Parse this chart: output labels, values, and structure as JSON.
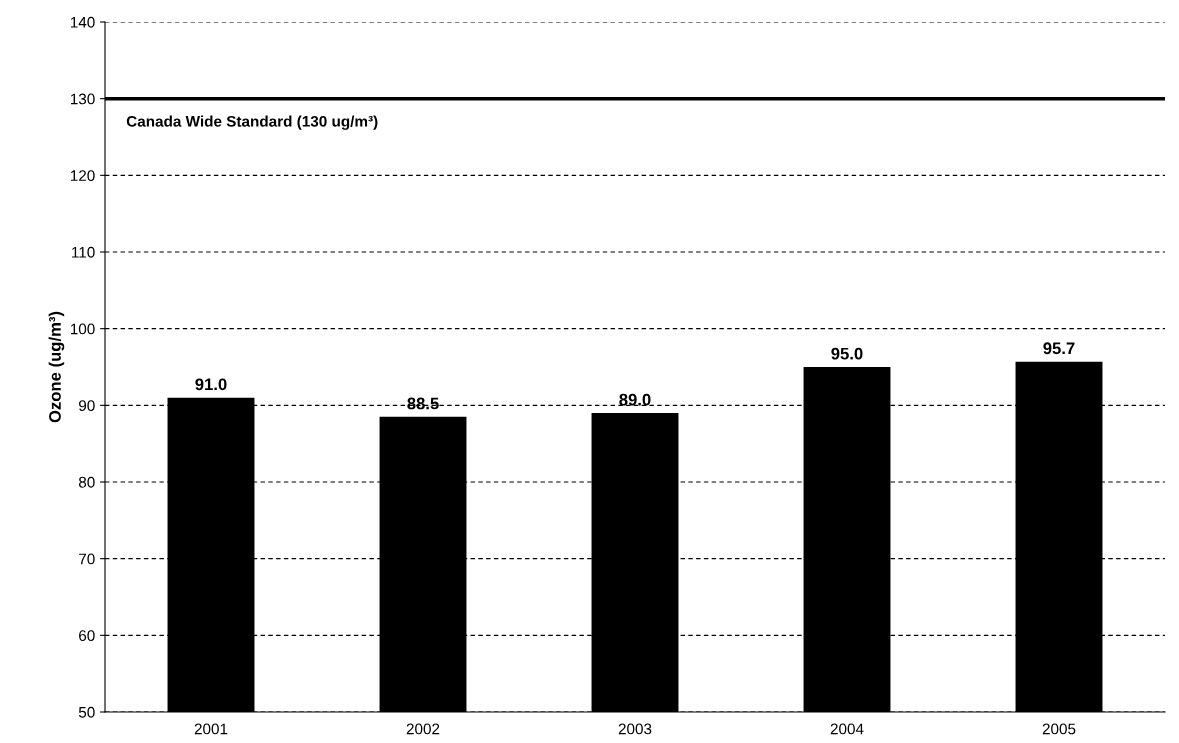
{
  "chart_data": {
    "type": "bar",
    "ylabel": "Ozone (ug/m³)",
    "categories": [
      "2001",
      "2002",
      "2003",
      "2004",
      "2005"
    ],
    "values": [
      91.0,
      88.5,
      89.0,
      95.0,
      95.7
    ],
    "color": "#000000",
    "value_labels": [
      "91.0",
      "88.5",
      "89.0",
      "95.0",
      "95.7"
    ],
    "ylim": [
      50,
      140
    ],
    "yticks": [
      50,
      60,
      70,
      80,
      90,
      100,
      110,
      120,
      130,
      140
    ],
    "grid": "y",
    "line_style": "dashed",
    "ref_lines": [
      {
        "axis": "y",
        "value": 130,
        "label": "Canada Wide Standard (130 ug/m³)",
        "color": "#000000",
        "line_style": "solid"
      }
    ]
  }
}
